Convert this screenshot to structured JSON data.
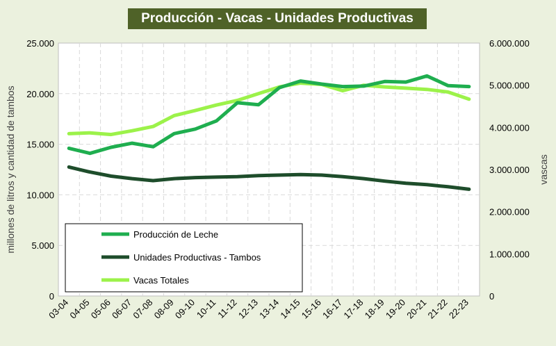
{
  "chart_data": {
    "type": "line",
    "title": "Producción - Vacas - Unidades Productivas",
    "ylabel": "millones de litros y cantidad de tambos",
    "y2label": "vascas",
    "ylim": [
      0,
      25000
    ],
    "y2lim": [
      0,
      6000000
    ],
    "yticks": [
      "0",
      "5.000",
      "10.000",
      "15.000",
      "20.000",
      "25.000"
    ],
    "y2ticks": [
      "0",
      "1.000.000",
      "2.000.000",
      "3.000.000",
      "4.000.000",
      "5.000.000",
      "6.000.000"
    ],
    "categories": [
      "03-04",
      "04-05",
      "05-06",
      "06-07",
      "07-08",
      "08-09",
      "09-10",
      "10-11",
      "11-12",
      "12-13",
      "13-14",
      "14-15",
      "15-16",
      "16-17",
      "17-18",
      "18-19",
      "19-20",
      "20-21",
      "21-22",
      "22-23"
    ],
    "grid": true,
    "legend_position": "bottom-left",
    "series": [
      {
        "name": "Producción de Leche",
        "axis": "left",
        "color": "#1fae4f",
        "values": [
          14600,
          14100,
          14700,
          15100,
          14750,
          16050,
          16500,
          17300,
          19100,
          18900,
          20600,
          21250,
          20950,
          20700,
          20750,
          21200,
          21150,
          21750,
          20800,
          20700
        ]
      },
      {
        "name": "Unidades Productivas - Tambos",
        "axis": "left",
        "color": "#1e4d2b",
        "values": [
          12750,
          12250,
          11850,
          11600,
          11400,
          11600,
          11700,
          11750,
          11800,
          11900,
          11950,
          12000,
          11950,
          11800,
          11600,
          11350,
          11150,
          11000,
          10800,
          10550
        ]
      },
      {
        "name": "Vacas Totales",
        "axis": "right",
        "color": "#9cf24a",
        "values": [
          3850000,
          3870000,
          3830000,
          3920000,
          4020000,
          4280000,
          4400000,
          4530000,
          4640000,
          4800000,
          4960000,
          5050000,
          5020000,
          4870000,
          5000000,
          4960000,
          4930000,
          4900000,
          4840000,
          4670000
        ]
      }
    ]
  }
}
